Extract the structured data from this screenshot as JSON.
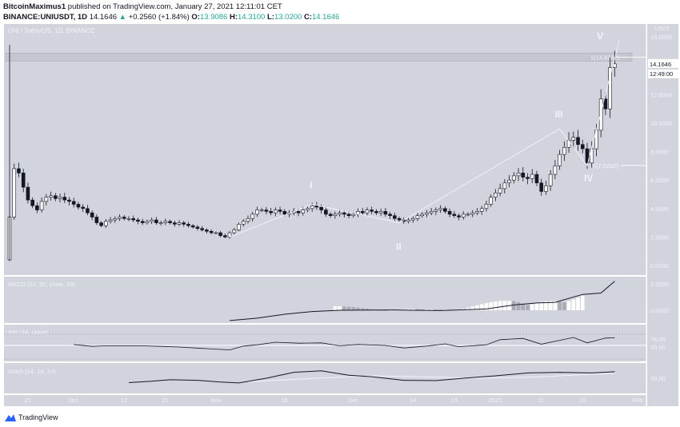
{
  "header": {
    "author": "BitcoinMaximus1",
    "published": "published on TradingView.com, January 27, 2021 12:11:01 CET",
    "symbol": "BINANCE:UNIUSDT, 1D",
    "last": "14.1646",
    "change": "+0.2560 (+1.84%)",
    "o_label": "O:",
    "o": "13.9086",
    "h_label": "H:",
    "h": "14.3100",
    "l_label": "L:",
    "l": "13.0200",
    "c_label": "C:",
    "c": "14.1646"
  },
  "footer": {
    "brand": "TradingView"
  },
  "colors": {
    "pane_bg": "#d1d4dc",
    "up": "#ffffff",
    "down": "#131722",
    "text_light": "#f0f3fa",
    "accent": "#26a69a",
    "brand": "#2962ff"
  },
  "chart_data": {
    "type": "candlestick",
    "title": "UNI / TetherUS, 1D, BINANCE",
    "currency": "USDT",
    "start_date": "2020-09-17",
    "price_ticks": [
      "0.0000",
      "2.0000",
      "4.0000",
      "6.0000",
      "8.0000",
      "10.0000",
      "12.0000",
      "14.1646",
      "16.0000"
    ],
    "price_ylim": [
      0,
      16
    ],
    "last_price": "14.1646",
    "countdown": "12:49:00",
    "x_ticks": [
      {
        "label": "21",
        "date": "2020-09-21"
      },
      {
        "label": "Oct",
        "date": "2020-10-01"
      },
      {
        "label": "12",
        "date": "2020-10-12"
      },
      {
        "label": "21",
        "date": "2020-10-21"
      },
      {
        "label": "Nov",
        "date": "2020-11-01"
      },
      {
        "label": "16",
        "date": "2020-11-16"
      },
      {
        "label": "Dec",
        "date": "2020-12-01"
      },
      {
        "label": "14",
        "date": "2020-12-14"
      },
      {
        "label": "23",
        "date": "2020-12-23"
      },
      {
        "label": "2021",
        "date": "2021-01-01"
      },
      {
        "label": "11",
        "date": "2021-01-11"
      },
      {
        "label": "20",
        "date": "2021-01-20"
      },
      {
        "label": "Feb",
        "date": "2021-02-01"
      }
    ],
    "first_open": 0.4,
    "closes": [
      3.4,
      6.8,
      6.5,
      5.5,
      4.6,
      4.2,
      3.9,
      4.5,
      4.8,
      4.9,
      4.7,
      4.8,
      4.6,
      4.5,
      4.3,
      4.1,
      4.0,
      3.7,
      3.4,
      3.0,
      2.8,
      3.1,
      3.2,
      3.3,
      3.4,
      3.3,
      3.3,
      3.2,
      3.1,
      3.0,
      3.1,
      3.2,
      3.0,
      3.0,
      3.1,
      3.0,
      2.9,
      3.0,
      2.9,
      2.8,
      2.7,
      2.6,
      2.5,
      2.4,
      2.3,
      2.3,
      2.1,
      2.0,
      2.3,
      2.5,
      2.9,
      3.1,
      3.3,
      3.6,
      3.9,
      3.9,
      3.8,
      3.7,
      3.9,
      3.8,
      3.6,
      3.7,
      3.8,
      3.7,
      3.9,
      4.0,
      4.2,
      4.1,
      3.9,
      3.6,
      3.5,
      3.6,
      3.7,
      3.6,
      3.5,
      3.6,
      3.8,
      3.7,
      3.9,
      3.8,
      3.7,
      3.8,
      3.6,
      3.5,
      3.3,
      3.2,
      3.1,
      3.2,
      3.3,
      3.5,
      3.6,
      3.7,
      3.8,
      3.9,
      4.0,
      3.8,
      3.6,
      3.5,
      3.4,
      3.6,
      3.6,
      3.7,
      3.8,
      4.0,
      4.3,
      4.8,
      5.1,
      5.4,
      5.8,
      6.0,
      6.3,
      6.5,
      6.2,
      6.1,
      6.4,
      5.8,
      5.2,
      5.6,
      6.4,
      7.0,
      7.8,
      8.3,
      8.8,
      9.0,
      8.5,
      8.2,
      7.2,
      8.2,
      9.5,
      11.7,
      11.0,
      13.9,
      14.1646
    ],
    "fib_levels": [
      {
        "label": "1(14.6942)",
        "value": 14.6942
      },
      {
        "label": "0(7.0262)",
        "value": 7.0262
      }
    ],
    "waves": [
      {
        "label": "",
        "date": "2020-11-04",
        "price": 2.0
      },
      {
        "label": "I",
        "date": "2020-11-22",
        "price": 4.3
      },
      {
        "label": "II",
        "date": "2020-12-11",
        "price": 3.0
      },
      {
        "label": "III",
        "date": "2021-01-15",
        "price": 9.6
      },
      {
        "label": "IV",
        "date": "2021-01-21",
        "price": 7.03
      },
      {
        "label": "V",
        "date": "2021-01-28",
        "price": 15.8
      }
    ],
    "macd": {
      "title": "MACD (21, 50, close, 24)",
      "ticks": [
        "0.0000",
        "2.0000"
      ],
      "line": [
        [
          "2020-11-04",
          -0.78
        ],
        [
          "2020-11-10",
          -0.6
        ],
        [
          "2020-11-16",
          -0.3
        ],
        [
          "2020-11-22",
          -0.1
        ],
        [
          "2020-11-28",
          0
        ],
        [
          "2020-12-10",
          0.02
        ],
        [
          "2020-12-20",
          -0.02
        ],
        [
          "2020-12-30",
          0.1
        ],
        [
          "2021-01-05",
          0.4
        ],
        [
          "2021-01-10",
          0.55
        ],
        [
          "2021-01-14",
          0.6
        ],
        [
          "2021-01-20",
          1.2
        ],
        [
          "2021-01-24",
          1.3
        ],
        [
          "2021-01-27",
          2.2
        ]
      ],
      "histogram": [
        0.3,
        0.3,
        0.28,
        0.26,
        0.24,
        0.2,
        0.16,
        0.12,
        0.08,
        0.04,
        0.02,
        -0.02,
        0.02,
        0.04,
        0.06,
        0.08,
        0.1,
        0.1,
        0.08,
        0.06,
        0.06,
        0.06,
        0.05,
        0.04,
        0.04,
        0.03,
        0.05,
        0.08,
        0.12,
        0.2,
        0.3,
        0.38,
        0.46,
        0.54,
        0.6,
        0.66,
        0.7,
        0.72,
        0.72,
        0.7,
        0.6,
        0.5,
        0.4,
        0.45,
        0.55,
        0.62,
        0.68,
        0.7,
        0.7,
        0.65,
        0.6,
        0.7,
        0.82,
        0.95,
        1.1
      ]
    },
    "rsi": {
      "title": "RSI (14, close)",
      "ticks": [
        "50.00",
        "75.00"
      ],
      "line": [
        [
          "2020-10-01",
          53
        ],
        [
          "2020-10-05",
          47
        ],
        [
          "2020-10-08",
          49
        ],
        [
          "2020-10-15",
          49
        ],
        [
          "2020-10-20",
          47
        ],
        [
          "2020-10-24",
          45
        ],
        [
          "2020-10-30",
          40
        ],
        [
          "2020-11-04",
          36
        ],
        [
          "2020-11-07",
          48
        ],
        [
          "2020-11-10",
          52
        ],
        [
          "2020-11-14",
          60
        ],
        [
          "2020-11-19",
          57
        ],
        [
          "2020-11-24",
          58
        ],
        [
          "2020-11-28",
          49
        ],
        [
          "2020-12-02",
          53
        ],
        [
          "2020-12-08",
          50
        ],
        [
          "2020-12-12",
          42
        ],
        [
          "2020-12-17",
          48
        ],
        [
          "2020-12-21",
          55
        ],
        [
          "2020-12-24",
          46
        ],
        [
          "2020-12-30",
          52
        ],
        [
          "2021-01-02",
          68
        ],
        [
          "2021-01-07",
          72
        ],
        [
          "2021-01-11",
          54
        ],
        [
          "2021-01-15",
          66
        ],
        [
          "2021-01-18",
          75
        ],
        [
          "2021-01-21",
          58
        ],
        [
          "2021-01-25",
          73
        ],
        [
          "2021-01-27",
          74
        ]
      ]
    },
    "stoch": {
      "title": "Stoch (14, 28, 14)",
      "ticks": [
        "50.00"
      ],
      "k": [
        [
          "2020-10-13",
          35
        ],
        [
          "2020-10-18",
          40
        ],
        [
          "2020-10-22",
          45
        ],
        [
          "2020-10-28",
          43
        ],
        [
          "2020-11-02",
          37
        ],
        [
          "2020-11-06",
          34
        ],
        [
          "2020-11-12",
          50
        ],
        [
          "2020-11-18",
          70
        ],
        [
          "2020-11-24",
          75
        ],
        [
          "2020-11-30",
          60
        ],
        [
          "2020-12-05",
          55
        ],
        [
          "2020-12-12",
          43
        ],
        [
          "2020-12-19",
          42
        ],
        [
          "2020-12-25",
          50
        ],
        [
          "2021-01-01",
          58
        ],
        [
          "2021-01-08",
          68
        ],
        [
          "2021-01-15",
          70
        ],
        [
          "2021-01-22",
          68
        ],
        [
          "2021-01-27",
          72
        ]
      ],
      "d": [
        [
          "2020-11-08",
          38
        ],
        [
          "2020-11-20",
          48
        ],
        [
          "2020-12-05",
          58
        ],
        [
          "2020-12-15",
          55
        ],
        [
          "2020-12-28",
          50
        ],
        [
          "2021-01-10",
          54
        ],
        [
          "2021-01-20",
          62
        ],
        [
          "2021-01-27",
          66
        ]
      ]
    }
  }
}
